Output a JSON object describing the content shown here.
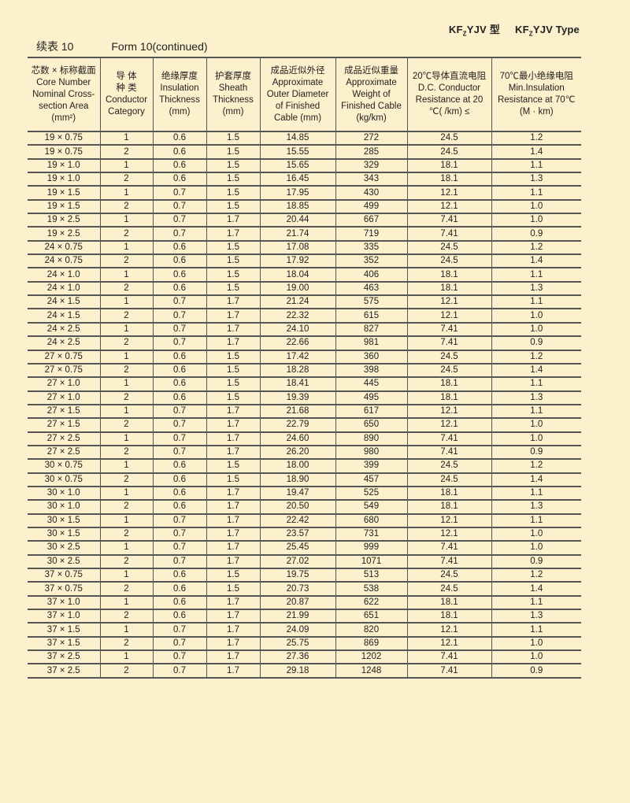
{
  "type_label": {
    "cn_prefix": "KF",
    "cn_sub": "Z",
    "cn_suffix": "YJV 型",
    "en_prefix": "KF",
    "en_sub": "Z",
    "en_suffix": "YJV Type"
  },
  "caption": {
    "cn": "续表 10",
    "en": "Form 10(continued)"
  },
  "headers": [
    [
      "芯数 × 标称截面",
      "Core Number",
      "Nominal Cross-",
      "section Area",
      "(mm²)"
    ],
    [
      "导 体",
      "种 类",
      "Conductor",
      "Category"
    ],
    [
      "绝缘厚度",
      "Insulation",
      "Thickness",
      "(mm)"
    ],
    [
      "护套厚度",
      "Sheath",
      "Thickness",
      "(mm)"
    ],
    [
      "成品近似外径",
      "Approximate",
      "Outer Diameter",
      "of Finished",
      "Cable (mm)"
    ],
    [
      "成品近似重量",
      "Approximate",
      "Weight of",
      "Finished Cable",
      "(kg/km)"
    ],
    [
      "20℃导体直流电阻",
      "D.C. Conductor",
      "Resistance at 20",
      "℃(   /km) ≤"
    ],
    [
      "70℃最小绝缘电阻",
      "Min.Insulation",
      "Resistance at 70℃",
      "(M     · km)"
    ]
  ],
  "rows": [
    [
      "19 × 0.75",
      "1",
      "0.6",
      "1.5",
      "14.85",
      "272",
      "24.5",
      "1.2"
    ],
    [
      "19 × 0.75",
      "2",
      "0.6",
      "1.5",
      "15.55",
      "285",
      "24.5",
      "1.4"
    ],
    [
      "19 × 1.0",
      "1",
      "0.6",
      "1.5",
      "15.65",
      "329",
      "18.1",
      "1.1"
    ],
    [
      "19 × 1.0",
      "2",
      "0.6",
      "1.5",
      "16.45",
      "343",
      "18.1",
      "1.3"
    ],
    [
      "19 × 1.5",
      "1",
      "0.7",
      "1.5",
      "17.95",
      "430",
      "12.1",
      "1.1"
    ],
    [
      "19 × 1.5",
      "2",
      "0.7",
      "1.5",
      "18.85",
      "499",
      "12.1",
      "1.0"
    ],
    [
      "19 × 2.5",
      "1",
      "0.7",
      "1.7",
      "20.44",
      "667",
      "7.41",
      "1.0"
    ],
    [
      "19 × 2.5",
      "2",
      "0.7",
      "1.7",
      "21.74",
      "719",
      "7.41",
      "0.9"
    ],
    [
      "24 × 0.75",
      "1",
      "0.6",
      "1.5",
      "17.08",
      "335",
      "24.5",
      "1.2"
    ],
    [
      "24 × 0.75",
      "2",
      "0.6",
      "1.5",
      "17.92",
      "352",
      "24.5",
      "1.4"
    ],
    [
      "24 × 1.0",
      "1",
      "0.6",
      "1.5",
      "18.04",
      "406",
      "18.1",
      "1.1"
    ],
    [
      "24 × 1.0",
      "2",
      "0.6",
      "1.5",
      "19.00",
      "463",
      "18.1",
      "1.3"
    ],
    [
      "24 × 1.5",
      "1",
      "0.7",
      "1.7",
      "21.24",
      "575",
      "12.1",
      "1.1"
    ],
    [
      "24 × 1.5",
      "2",
      "0.7",
      "1.7",
      "22.32",
      "615",
      "12.1",
      "1.0"
    ],
    [
      "24 × 2.5",
      "1",
      "0.7",
      "1.7",
      "24.10",
      "827",
      "7.41",
      "1.0"
    ],
    [
      "24 × 2.5",
      "2",
      "0.7",
      "1.7",
      "22.66",
      "981",
      "7.41",
      "0.9"
    ],
    [
      "27 × 0.75",
      "1",
      "0.6",
      "1.5",
      "17.42",
      "360",
      "24.5",
      "1.2"
    ],
    [
      "27 × 0.75",
      "2",
      "0.6",
      "1.5",
      "18.28",
      "398",
      "24.5",
      "1.4"
    ],
    [
      "27 × 1.0",
      "1",
      "0.6",
      "1.5",
      "18.41",
      "445",
      "18.1",
      "1.1"
    ],
    [
      "27 × 1.0",
      "2",
      "0.6",
      "1.5",
      "19.39",
      "495",
      "18.1",
      "1.3"
    ],
    [
      "27 × 1.5",
      "1",
      "0.7",
      "1.7",
      "21.68",
      "617",
      "12.1",
      "1.1"
    ],
    [
      "27 × 1.5",
      "2",
      "0.7",
      "1.7",
      "22.79",
      "650",
      "12.1",
      "1.0"
    ],
    [
      "27 × 2.5",
      "1",
      "0.7",
      "1.7",
      "24.60",
      "890",
      "7.41",
      "1.0"
    ],
    [
      "27 × 2.5",
      "2",
      "0.7",
      "1.7",
      "26.20",
      "980",
      "7.41",
      "0.9"
    ],
    [
      "30 × 0.75",
      "1",
      "0.6",
      "1.5",
      "18.00",
      "399",
      "24.5",
      "1.2"
    ],
    [
      "30 × 0.75",
      "2",
      "0.6",
      "1.5",
      "18.90",
      "457",
      "24.5",
      "1.4"
    ],
    [
      "30 × 1.0",
      "1",
      "0.6",
      "1.7",
      "19.47",
      "525",
      "18.1",
      "1.1"
    ],
    [
      "30 × 1.0",
      "2",
      "0.6",
      "1.7",
      "20.50",
      "549",
      "18.1",
      "1.3"
    ],
    [
      "30 × 1.5",
      "1",
      "0.7",
      "1.7",
      "22.42",
      "680",
      "12.1",
      "1.1"
    ],
    [
      "30 × 1.5",
      "2",
      "0.7",
      "1.7",
      "23.57",
      "731",
      "12.1",
      "1.0"
    ],
    [
      "30 × 2.5",
      "1",
      "0.7",
      "1.7",
      "25.45",
      "999",
      "7.41",
      "1.0"
    ],
    [
      "30 × 2.5",
      "2",
      "0.7",
      "1.7",
      "27.02",
      "1071",
      "7.41",
      "0.9"
    ],
    [
      "37 × 0.75",
      "1",
      "0.6",
      "1.5",
      "19.75",
      "513",
      "24.5",
      "1.2"
    ],
    [
      "37 × 0.75",
      "2",
      "0.6",
      "1.5",
      "20.73",
      "538",
      "24.5",
      "1.4"
    ],
    [
      "37 × 1.0",
      "1",
      "0.6",
      "1.7",
      "20.87",
      "622",
      "18.1",
      "1.1"
    ],
    [
      "37 × 1.0",
      "2",
      "0.6",
      "1.7",
      "21.99",
      "651",
      "18.1",
      "1.3"
    ],
    [
      "37 × 1.5",
      "1",
      "0.7",
      "1.7",
      "24.09",
      "820",
      "12.1",
      "1.1"
    ],
    [
      "37 × 1.5",
      "2",
      "0.7",
      "1.7",
      "25.75",
      "869",
      "12.1",
      "1.0"
    ],
    [
      "37 × 2.5",
      "1",
      "0.7",
      "1.7",
      "27.36",
      "1202",
      "7.41",
      "1.0"
    ],
    [
      "37 × 2.5",
      "2",
      "0.7",
      "1.7",
      "29.18",
      "1248",
      "7.41",
      "0.9"
    ]
  ]
}
